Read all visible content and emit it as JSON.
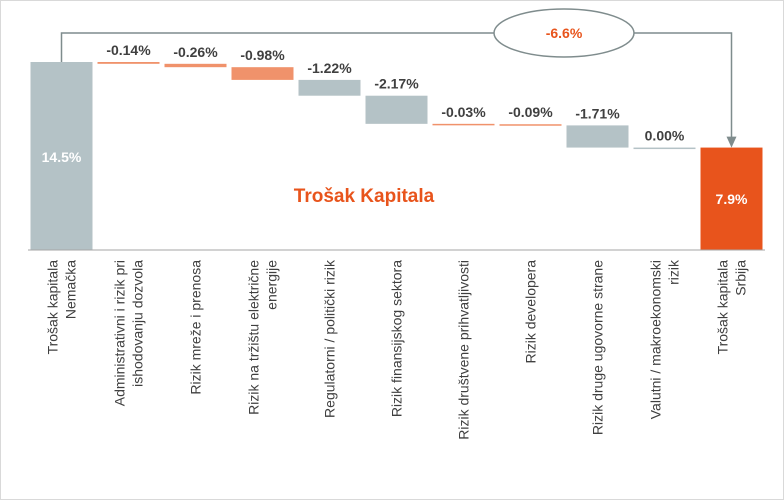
{
  "chart_data": {
    "type": "bar",
    "subtype": "waterfall",
    "title": "Trošak Kapitala",
    "categories": [
      "Trošak kapitala\nNemačka",
      "Administrativni i rizik pri\nishodovanju dozvola",
      "Rizik mreže i prenosa",
      "Rizik na tržištu električne\nenergije",
      "Regulatorni / politički rizik",
      "Rizik finansijskog sektora",
      "Rizik društvene prihvatljivosti",
      "Rizik developera",
      "Rizik druge ugovorne strane",
      "Valutni / makroekonomski\nrizik",
      "Trošak kapitala\nSrbija"
    ],
    "values": [
      14.5,
      -0.14,
      -0.26,
      -0.98,
      -1.22,
      -2.17,
      -0.03,
      -0.09,
      -1.71,
      0.0,
      7.9
    ],
    "value_labels": [
      "14.5%",
      "-0.14%",
      "-0.26%",
      "-0.98%",
      "-1.22%",
      "-2.17%",
      "-0.03%",
      "-0.09%",
      "-1.71%",
      "0.00%",
      "7.9%"
    ],
    "bar_kinds": [
      "total",
      "delta",
      "delta",
      "delta",
      "delta",
      "delta",
      "delta",
      "delta",
      "delta",
      "delta",
      "total"
    ],
    "bar_colors": [
      "#b4c2c6",
      "#f0926b",
      "#f0926b",
      "#f0926b",
      "#b4c2c6",
      "#b4c2c6",
      "#f0926b",
      "#f0926b",
      "#b4c2c6",
      "#b4c2c6",
      "#e8541c"
    ],
    "overall_change_label": "-6.6%",
    "title_color": "#e8541c",
    "change_label_color": "#e8541c",
    "ylim": [
      0,
      16.5
    ],
    "grid": false,
    "legend": "none"
  }
}
